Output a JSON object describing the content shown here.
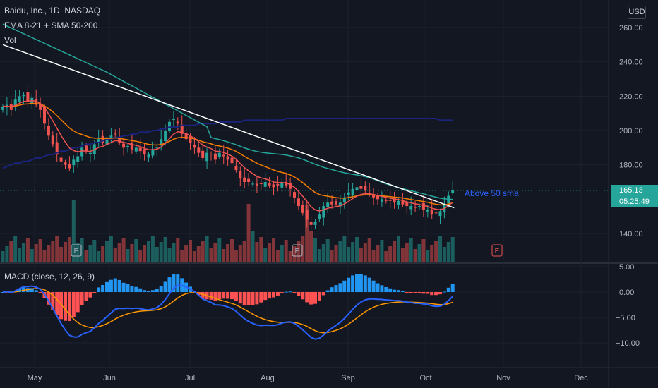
{
  "legend": {
    "symbol": "Baidu, Inc., 1D, NASDAQ",
    "indicator": "EMA 8-21 + SMA 50-200",
    "volume": "Vol",
    "macd": "MACD (close, 12, 26, 9)"
  },
  "currency_button": "USD",
  "last_price": "165.13",
  "countdown": "05:25:49",
  "annotation": "Above 50 sma",
  "earnings_marker": "E",
  "colors": {
    "background": "#131722",
    "up": "#26a69a",
    "down": "#ef5350",
    "ema_fast": "#ef5350",
    "ema_slow": "#f57c00",
    "sma50": "#26a69a",
    "sma200": "#1a237e",
    "trendline": "#ffffff",
    "macd_line": "#2962ff",
    "signal_line": "#ff9800",
    "hist_pos": "#2196f3",
    "hist_neg": "#ff5252"
  },
  "chart_data": {
    "type": "candlestick",
    "price_axis": {
      "ticks": [
        260,
        240,
        220,
        200,
        180,
        140
      ],
      "tick_labels": [
        "260.00",
        "240.00",
        "220.00",
        "200.00",
        "180.00",
        "140.00"
      ]
    },
    "macd_axis": {
      "ticks": [
        5,
        0,
        -5,
        -10
      ],
      "tick_labels": [
        "5.00",
        "0.00",
        "−5.00",
        "−10.00"
      ]
    },
    "time_axis": [
      "May",
      "Jun",
      "Jul",
      "Aug",
      "Sep",
      "Oct",
      "Nov",
      "Dec"
    ],
    "closes": [
      214,
      215,
      212,
      218,
      220,
      221,
      217,
      219,
      215,
      212,
      204,
      197,
      192,
      186,
      182,
      180,
      178,
      183,
      185,
      190,
      188,
      187,
      192,
      195,
      193,
      196,
      197,
      198,
      193,
      190,
      191,
      189,
      190,
      188,
      186,
      186,
      189,
      190,
      195,
      200,
      205,
      207,
      204,
      198,
      195,
      193,
      190,
      187,
      184,
      187,
      186,
      183,
      187,
      185,
      183,
      181,
      177,
      172,
      170,
      170,
      169,
      168,
      169,
      170,
      168,
      167,
      168,
      170,
      168,
      166,
      161,
      156,
      152,
      148,
      145,
      147,
      151,
      156,
      158,
      157,
      157,
      158,
      161,
      164,
      166,
      167,
      166,
      165,
      163,
      161,
      160,
      160,
      159,
      159,
      158,
      159,
      157,
      156,
      156,
      155,
      156,
      154,
      154,
      151,
      152,
      153,
      157,
      162,
      165.13
    ],
    "sma200": [
      178,
      179,
      180,
      181,
      181,
      182,
      182,
      183,
      184,
      184,
      185,
      186,
      186,
      187,
      188,
      188,
      189,
      190,
      190,
      191,
      192,
      192,
      193,
      193,
      194,
      195,
      195,
      196,
      196,
      197,
      197,
      198,
      198,
      199,
      199,
      199,
      200,
      200,
      201,
      201,
      202,
      202,
      202,
      203,
      203,
      203,
      203,
      204,
      204,
      204,
      204,
      204,
      205,
      205,
      205,
      205,
      205,
      205,
      206,
      206,
      206,
      206,
      206,
      206,
      206,
      206,
      206,
      206,
      207,
      207,
      207,
      207,
      207,
      207,
      207,
      207,
      207,
      207,
      207,
      207,
      207,
      207,
      207,
      207,
      207,
      207,
      207,
      207,
      207,
      207,
      207,
      207,
      207,
      207,
      207,
      207,
      207,
      207,
      207,
      207,
      207,
      207,
      207,
      207,
      207,
      206,
      206,
      206,
      206
    ],
    "sma50_start": 262,
    "trendline": {
      "from": {
        "bar": 0,
        "price": 250
      },
      "to": {
        "bar": 107,
        "price": 155
      }
    },
    "macd_range": [
      -14,
      6
    ]
  }
}
